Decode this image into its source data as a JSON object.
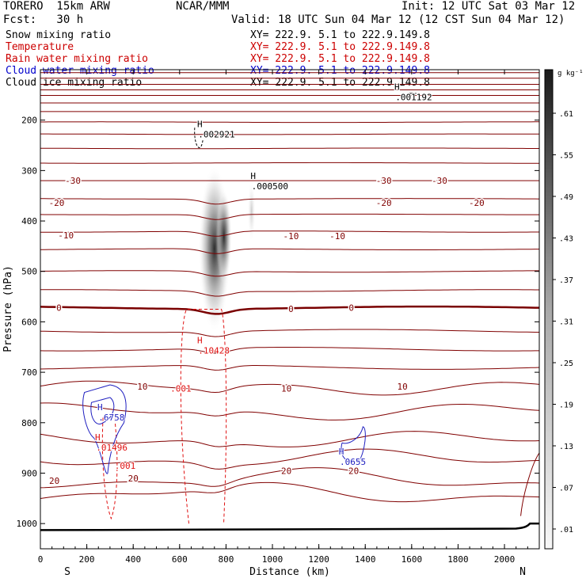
{
  "header": {
    "model": "TORERO  15km ARW",
    "org": "NCAR/MMM",
    "init": "Init: 12 UTC Sat 03 Mar 12",
    "fcst": "Fcst:   30 h",
    "valid": "Valid: 18 UTC Sun 04 Mar 12 (12 CST Sun 04 Mar 12)"
  },
  "legend": [
    {
      "label": "Snow mixing ratio",
      "color": "#000000",
      "xy": "XY= 222.9.  5.1 to 222.9.149.8"
    },
    {
      "label": "Temperature",
      "color": "#cc0000",
      "xy": "XY= 222.9.  5.1 to 222.9.149.8"
    },
    {
      "label": "Rain water mixing ratio",
      "color": "#cc0000",
      "xy": "XY= 222.9.  5.1 to 222.9.149.8"
    },
    {
      "label": "Cloud water mixing ratio",
      "color": "#0000cc",
      "xy": "XY= 222.9.  5.1 to 222.9.149.8"
    },
    {
      "label": "Cloud ice mixing ratio",
      "color": "#000000",
      "xy": "XY= 222.9.  5.1 to 222.9.149.8"
    }
  ],
  "colors": {
    "temperature": "#800000",
    "freezing": "#7a0000",
    "rain": "#e01010",
    "cloud_water": "#2020c0",
    "ice": "#000000",
    "terrain": "#000000"
  },
  "chart_data": {
    "type": "contour",
    "xlabel": "Distance (km)",
    "ylabel": "Pressure (hPa)",
    "xlim": [
      0,
      2150
    ],
    "ylim": [
      1050,
      100
    ],
    "xticks": [
      0,
      200,
      400,
      600,
      800,
      1000,
      1200,
      1400,
      1600,
      1800,
      2000
    ],
    "yticks": [
      200,
      300,
      400,
      500,
      600,
      700,
      800,
      900,
      1000
    ],
    "x_endpoint_labels": {
      "left": "S",
      "right": "N"
    },
    "colorbar": {
      "units": "g kg⁻¹",
      "ticks": [
        ".01",
        ".07",
        ".13",
        ".19",
        ".25",
        ".31",
        ".37",
        ".43",
        ".49",
        ".55",
        ".61"
      ]
    },
    "temperature_levels_hPa": [
      {
        "base": 106,
        "trend": 0
      },
      {
        "base": 117,
        "trend": 0
      },
      {
        "base": 129,
        "trend": 0
      },
      {
        "base": 140,
        "trend": 0
      },
      {
        "base": 151,
        "trend": 0
      },
      {
        "base": 166,
        "trend": 0
      },
      {
        "base": 183,
        "trend": 0
      },
      {
        "base": 204,
        "trend": -2
      },
      {
        "base": 228,
        "trend": -2
      },
      {
        "base": 256,
        "trend": -2
      },
      {
        "base": 285,
        "trend": -2
      },
      {
        "base": 320,
        "trend": 0
      },
      {
        "base": 356,
        "trend": 2
      },
      {
        "base": 387,
        "trend": 2
      },
      {
        "base": 421,
        "trend": 4
      },
      {
        "base": 456,
        "trend": 4
      },
      {
        "base": 500,
        "trend": 5
      },
      {
        "base": 538,
        "trend": 6
      },
      {
        "base": 572,
        "trend": 8
      },
      {
        "base": 618,
        "trend": 10
      },
      {
        "base": 654,
        "trend": 12
      },
      {
        "base": 690,
        "trend": 14
      },
      {
        "base": 730,
        "trend": 25
      },
      {
        "base": 778,
        "trend": 35
      },
      {
        "base": 834,
        "trend": 35
      },
      {
        "base": 872,
        "trend": 40
      },
      {
        "base": 912,
        "trend": 50
      },
      {
        "base": 940,
        "trend": 50
      }
    ],
    "temperature_labels": [
      {
        "text": "-30",
        "x": 140,
        "p": 320
      },
      {
        "text": "-30",
        "x": 1480,
        "p": 320
      },
      {
        "text": "-30",
        "x": 1720,
        "p": 320
      },
      {
        "text": "-20",
        "x": 70,
        "p": 364
      },
      {
        "text": "-20",
        "x": 1480,
        "p": 364
      },
      {
        "text": "-20",
        "x": 1880,
        "p": 364
      },
      {
        "text": "-10",
        "x": 110,
        "p": 428
      },
      {
        "text": "-10",
        "x": 1080,
        "p": 430
      },
      {
        "text": "-10",
        "x": 1280,
        "p": 430
      },
      {
        "text": "0",
        "x": 80,
        "p": 572
      },
      {
        "text": "0",
        "x": 1080,
        "p": 574
      },
      {
        "text": "0",
        "x": 1340,
        "p": 572
      },
      {
        "text": "10",
        "x": 440,
        "p": 728
      },
      {
        "text": "10",
        "x": 1060,
        "p": 732
      },
      {
        "text": "10",
        "x": 1560,
        "p": 728
      },
      {
        "text": "20",
        "x": 60,
        "p": 915
      },
      {
        "text": "20",
        "x": 400,
        "p": 910
      },
      {
        "text": "20",
        "x": 1060,
        "p": 895
      },
      {
        "text": "20",
        "x": 1350,
        "p": 895
      }
    ],
    "maxima": [
      {
        "field": "cloud ice",
        "text": "H",
        "value": ".002921",
        "x": 680,
        "p": 217
      },
      {
        "field": "cloud ice",
        "text": "H",
        "value": ".000500",
        "x": 910,
        "p": 320
      },
      {
        "field": "cloud ice",
        "text": "H",
        "value": ".001192",
        "x": 1530,
        "p": 143
      },
      {
        "field": "rain",
        "text": "H",
        "value": ".10428",
        "x": 680,
        "p": 646
      },
      {
        "field": "cloud water",
        "text": "H",
        "value": ".6758",
        "x": 250,
        "p": 778
      },
      {
        "field": "rain",
        "text": "H",
        "value": ".01496",
        "x": 240,
        "p": 838
      },
      {
        "field": "cloud water",
        "text": "H",
        "value": ".0655",
        "x": 1290,
        "p": 866
      }
    ],
    "contour_labels": [
      {
        "field": "rain",
        "text": ".001",
        "x": 560,
        "p": 732
      },
      {
        "field": "rain",
        "text": ".001",
        "x": 320,
        "p": 885
      }
    ],
    "snow_core": {
      "x": 750,
      "p": 455,
      "max": 0.61
    }
  }
}
